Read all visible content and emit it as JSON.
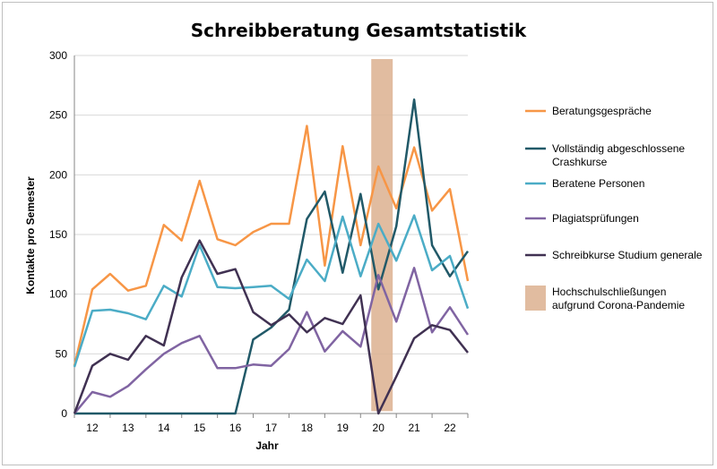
{
  "chart_data": {
    "type": "line",
    "title": "Schreibberatung Gesamtstatistik",
    "xlabel": "Jahr",
    "ylabel": "Kontakte pro Semester",
    "ylim": [
      0,
      300
    ],
    "yticks": [
      0,
      50,
      100,
      150,
      200,
      250,
      300
    ],
    "xtick_labels": [
      "12",
      "13",
      "14",
      "15",
      "16",
      "17",
      "18",
      "19",
      "20",
      "21",
      "22"
    ],
    "x": [
      11.5,
      12,
      12.5,
      13,
      13.5,
      14,
      14.5,
      15,
      15.5,
      16,
      16.5,
      17,
      17.5,
      18,
      18.5,
      19,
      19.5,
      20,
      20.5,
      21,
      21.5,
      22,
      22.5
    ],
    "grid": "horizontal",
    "legend_position": "right",
    "series": [
      {
        "name": "Beratungsgespräche",
        "color": "#f79646",
        "values": [
          40,
          104,
          117,
          103,
          107,
          158,
          145,
          195,
          146,
          141,
          152,
          159,
          159,
          241,
          124,
          224,
          141,
          207,
          172,
          223,
          170,
          188,
          111
        ]
      },
      {
        "name": "Vollständig abgeschlossene Crashkurse",
        "color": "#215968",
        "values": [
          0,
          0,
          0,
          0,
          0,
          0,
          0,
          0,
          0,
          0,
          62,
          72,
          87,
          163,
          186,
          118,
          184,
          104,
          157,
          263,
          141,
          115,
          136
        ]
      },
      {
        "name": "Beratene Personen",
        "color": "#4bacc6",
        "values": [
          39,
          86,
          87,
          84,
          79,
          107,
          98,
          141,
          106,
          105,
          106,
          107,
          96,
          129,
          111,
          165,
          115,
          159,
          128,
          166,
          120,
          132,
          88
        ]
      },
      {
        "name": "Plagiatsprüfungen",
        "color": "#8064a2",
        "values": [
          0,
          18,
          14,
          23,
          37,
          50,
          59,
          65,
          38,
          38,
          41,
          40,
          54,
          85,
          52,
          69,
          56,
          116,
          77,
          122,
          68,
          89,
          66
        ]
      },
      {
        "name": "Schreibkurse Studium generale",
        "color": "#403152",
        "values": [
          0,
          40,
          50,
          45,
          65,
          57,
          114,
          145,
          117,
          121,
          85,
          74,
          83,
          68,
          80,
          75,
          99,
          0,
          31,
          63,
          74,
          70,
          51
        ]
      }
    ],
    "shaded_band": {
      "name": "Hochschulschließungen aufgrund Corona-Pandemie",
      "color": "#dcb08f",
      "x_range": [
        19.8,
        20.4
      ]
    }
  }
}
